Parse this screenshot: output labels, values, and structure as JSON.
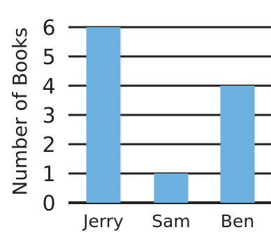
{
  "chart_data": {
    "type": "bar",
    "categories": [
      "Jerry",
      "Sam",
      "Ben"
    ],
    "values": [
      6,
      1,
      4
    ],
    "title": "",
    "xlabel": "",
    "ylabel": "Number of Books",
    "ylim": [
      0,
      6
    ],
    "yticks": [
      "0",
      "1",
      "2",
      "3",
      "4",
      "5",
      "6"
    ],
    "grid": true,
    "colors": {
      "bar": "#6cb0e0",
      "grid": "#231f20",
      "text": "#231f20"
    }
  }
}
